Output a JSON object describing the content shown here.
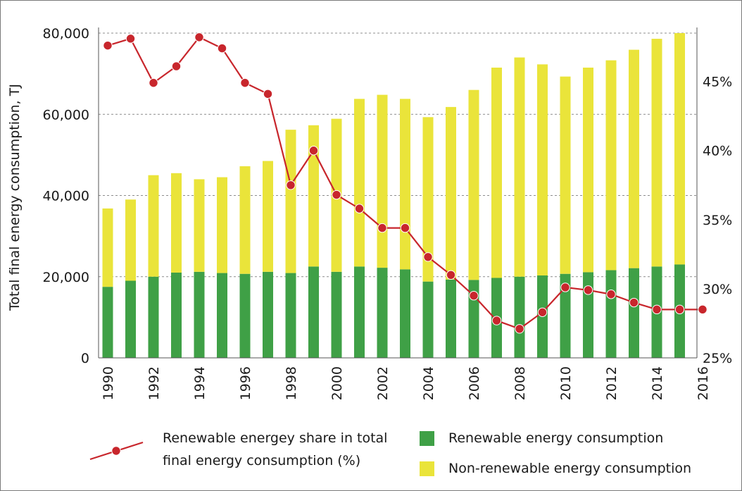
{
  "chart_data": {
    "type": "bar",
    "stacked": true,
    "categories": [
      "1990",
      "1991",
      "1992",
      "1993",
      "1994",
      "1995",
      "1996",
      "1997",
      "1998",
      "1999",
      "2000",
      "2001",
      "2002",
      "2003",
      "2004",
      "2005",
      "2006",
      "2007",
      "2008",
      "2009",
      "2010",
      "2011",
      "2012",
      "2013",
      "2014",
      "2015",
      "2016"
    ],
    "x_tick_labels": [
      "1990",
      "1992",
      "1994",
      "1996",
      "1998",
      "2000",
      "2002",
      "2004",
      "2006",
      "2008",
      "2010",
      "2012",
      "2014",
      "2016"
    ],
    "ylabel": "Total final energy consumption, TJ",
    "ylim": [
      0,
      80000
    ],
    "y_ticks": [
      0,
      20000,
      40000,
      60000,
      80000
    ],
    "y_tick_labels": [
      "0",
      "20,000",
      "40,000",
      "60,000",
      "80,000"
    ],
    "y2lim": [
      25,
      48.5
    ],
    "y2_ticks": [
      25,
      30,
      35,
      40,
      45
    ],
    "y2_tick_labels": [
      "25%",
      "30%",
      "35%",
      "40%",
      "45%"
    ],
    "grid": "horizontal dashed",
    "series": [
      {
        "name": "Renewable energy consumption",
        "kind": "bar",
        "color": "#3fa046",
        "values": [
          17500,
          19000,
          20000,
          21000,
          21200,
          20900,
          20700,
          21200,
          20900,
          22500,
          21200,
          22500,
          22200,
          21800,
          18800,
          19300,
          19200,
          19700,
          20000,
          20300,
          20700,
          21100,
          21600,
          22100,
          22500,
          23000,
          null
        ]
      },
      {
        "name": "Non-renewable energy consumption",
        "kind": "bar",
        "color": "#eae43a",
        "values": [
          19300,
          20000,
          25000,
          24500,
          22800,
          23600,
          26500,
          27300,
          35300,
          34800,
          37700,
          41300,
          42600,
          42000,
          40500,
          42500,
          46800,
          51800,
          54000,
          52000,
          48600,
          50400,
          51700,
          53800,
          56100,
          57000,
          null
        ]
      },
      {
        "name": "Renewable energey share in total final energy consumption (%)",
        "kind": "line",
        "axis": "right",
        "color": "#c8262c",
        "values": [
          47.6,
          48.1,
          44.9,
          46.1,
          48.2,
          47.4,
          44.9,
          44.1,
          37.5,
          40.0,
          36.8,
          35.8,
          34.4,
          34.4,
          32.3,
          31.0,
          29.5,
          27.7,
          27.1,
          28.3,
          30.1,
          29.9,
          29.6,
          29.0,
          28.5,
          28.5,
          28.5
        ]
      }
    ],
    "legend": {
      "position": "bottom",
      "line_label": "Renewable energey share in total final energy consumption (%)",
      "line_label_parts": [
        "Renewable energey share in total",
        "final energy consumption (%)"
      ],
      "renewable_label": "Renewable energy consumption",
      "nonrenewable_label": "Non-renewable energy consumption"
    }
  }
}
